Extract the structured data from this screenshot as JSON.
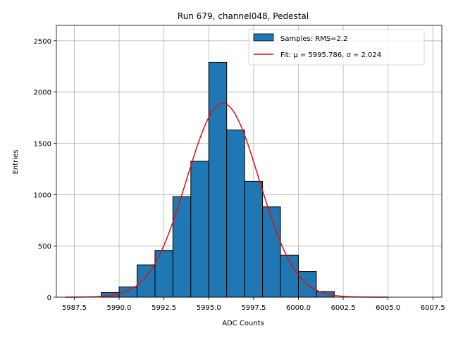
{
  "chart_data": {
    "type": "bar",
    "title": "Run 679, channel048, Pedestal",
    "xlabel": "ADC Counts",
    "ylabel": "Entries",
    "xlim": [
      5986.5,
      6008.0
    ],
    "ylim": [
      0,
      2650
    ],
    "xticks": [
      5987.5,
      5990.0,
      5992.5,
      5995.0,
      5997.5,
      6000.0,
      6002.5,
      6005.0,
      6007.5
    ],
    "xtick_labels": [
      "5987.5",
      "5990.0",
      "5992.5",
      "5995.0",
      "5997.5",
      "6000.0",
      "6002.5",
      "6005.0",
      "6007.5"
    ],
    "yticks": [
      0,
      500,
      1000,
      1500,
      2000,
      2500
    ],
    "ytick_labels": [
      "0",
      "500",
      "1000",
      "1500",
      "2000",
      "2500"
    ],
    "grid": true,
    "legend_position": "top-right",
    "histogram": {
      "name": "Samples: RMS=2.2",
      "color": "#1f77b4",
      "edge_color": "#000000",
      "bin_edges": [
        5989.0,
        5990.0,
        5991.0,
        5992.0,
        5993.0,
        5994.0,
        5995.0,
        5996.0,
        5997.0,
        5998.0,
        5999.0,
        6000.0,
        6001.0,
        6002.0,
        6003.0,
        6004.0,
        6005.0,
        6006.0,
        6007.0
      ],
      "counts": [
        45,
        100,
        315,
        455,
        980,
        1325,
        2290,
        1630,
        1130,
        880,
        410,
        250,
        55,
        0,
        0,
        0,
        0,
        0
      ]
    },
    "fit": {
      "name": "Fit: μ = 5995.786, σ = 2.024",
      "color": "#e01010",
      "mu": 5995.786,
      "sigma": 2.024,
      "amplitude": 1890,
      "x_range": [
        5987.0,
        6005.0
      ]
    }
  }
}
